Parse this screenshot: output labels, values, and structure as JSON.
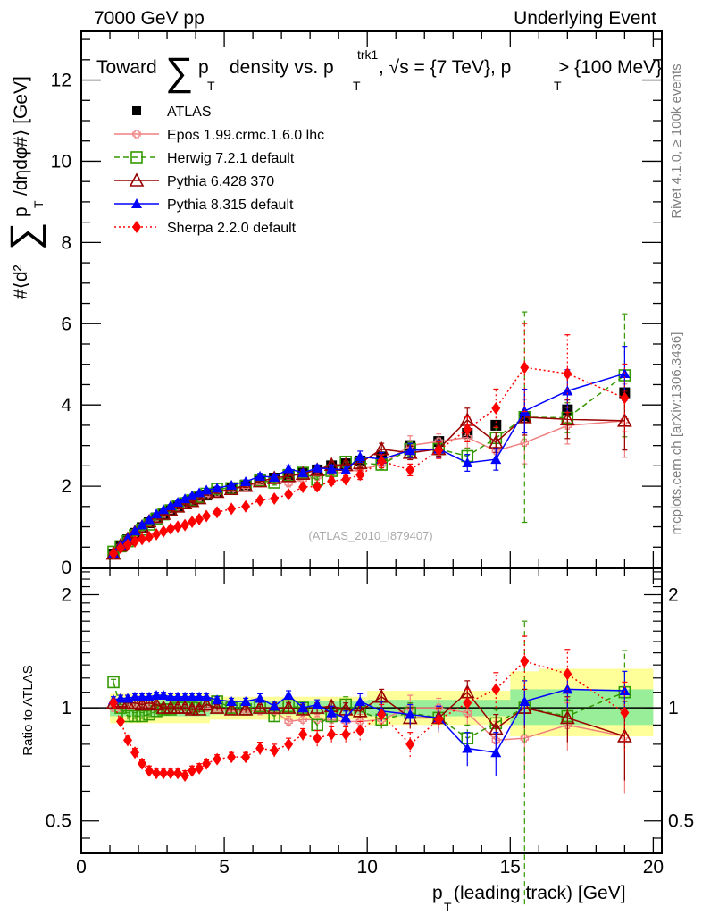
{
  "header": {
    "left": "7000 GeV pp",
    "right": "Underlying Event"
  },
  "side_labels": {
    "rivet": "Rivet 4.1.0, ≥ 100k events",
    "mcplots": "mcplots.cern.ch [arXiv:1306.3436]"
  },
  "watermark": "(ATLAS_2010_I879407)",
  "chart_data": [
    {
      "type": "scatter",
      "panel": "main",
      "title": "Toward ∑ p_T density vs. p_T^trk1, √s = {7 TeV}, p_T > {100 MeV}",
      "title_parts": {
        "a": "Toward",
        "b": "p",
        "c": "T",
        "d": "density vs. p",
        "e": "T",
        "f": "trk1",
        "g": ", √s = {7 TeV}, p",
        "h": "T",
        "i": " > {100 MeV}"
      },
      "ylabel": "#⟨d² ∑ p_T /dηdφ#⟩ [GeV]",
      "ylabel_parts": {
        "a": "#⟨d²",
        "b": "p",
        "c": "T",
        "d": "/dηdφ#⟩ [GeV]"
      },
      "xlabel": "",
      "xlim": [
        0,
        20.3
      ],
      "ylim": [
        0,
        13.2
      ],
      "yticks": [
        0,
        2,
        4,
        6,
        8,
        10,
        12
      ],
      "legend_position": "top-left",
      "x": [
        1.125,
        1.375,
        1.625,
        1.875,
        2.125,
        2.375,
        2.625,
        2.875,
        3.125,
        3.375,
        3.625,
        3.875,
        4.125,
        4.375,
        4.75,
        5.25,
        5.75,
        6.25,
        6.75,
        7.25,
        7.75,
        8.25,
        8.75,
        9.25,
        9.75,
        10.5,
        11.5,
        12.5,
        13.5,
        14.5,
        15.5,
        17,
        19
      ],
      "xerr": [
        0.125,
        0.125,
        0.125,
        0.125,
        0.125,
        0.125,
        0.125,
        0.125,
        0.125,
        0.125,
        0.125,
        0.125,
        0.125,
        0.125,
        0.25,
        0.25,
        0.25,
        0.25,
        0.25,
        0.25,
        0.25,
        0.25,
        0.25,
        0.25,
        0.25,
        0.5,
        0.5,
        0.5,
        0.5,
        0.5,
        0.5,
        1,
        1
      ],
      "series": [
        {
          "name": "ATLAS",
          "color": "#000000",
          "marker": "filled-square",
          "values": [
            0.33,
            0.52,
            0.68,
            0.84,
            0.98,
            1.1,
            1.22,
            1.32,
            1.42,
            1.5,
            1.58,
            1.65,
            1.72,
            1.78,
            1.86,
            1.95,
            2.03,
            2.12,
            2.2,
            2.25,
            2.33,
            2.4,
            2.5,
            2.55,
            2.62,
            2.72,
            3.0,
            3.1,
            3.3,
            3.5,
            3.7,
            3.88,
            4.3
          ]
        },
        {
          "name": "Epos 1.99.crmc.1.6.0 lhc",
          "color": "#f08080",
          "marker": "open-cross",
          "line": "solid",
          "ratio": [
            1.0,
            1.0,
            1.01,
            1.01,
            1.01,
            1.01,
            1.01,
            1.0,
            1.0,
            1.0,
            1.0,
            1.0,
            1.0,
            1.0,
            0.99,
            0.98,
            0.98,
            0.98,
            0.98,
            0.92,
            0.93,
            0.93,
            0.93,
            0.92,
            0.92,
            0.93,
            1.0,
            1.0,
            0.97,
            0.82,
            0.83,
            0.9,
            0.84
          ],
          "err": [
            0.02,
            0.02,
            0.02,
            0.02,
            0.02,
            0.02,
            0.02,
            0.02,
            0.02,
            0.02,
            0.02,
            0.02,
            0.02,
            0.02,
            0.02,
            0.02,
            0.02,
            0.02,
            0.03,
            0.03,
            0.03,
            0.03,
            0.04,
            0.04,
            0.04,
            0.05,
            0.08,
            0.06,
            0.08,
            0.1,
            0.17,
            0.13,
            0.25
          ]
        },
        {
          "name": "Herwig 7.2.1 default",
          "color": "#339900",
          "marker": "open-square",
          "line": "dashed",
          "ratio": [
            1.17,
            1.0,
            0.95,
            0.95,
            0.95,
            0.96,
            0.98,
            0.99,
            0.99,
            1.0,
            1.0,
            1.0,
            1.01,
            1.02,
            1.04,
            1.0,
            0.99,
            1.01,
            0.95,
            1.01,
            1.0,
            0.9,
            0.95,
            1.02,
            0.98,
            0.93,
            0.97,
            0.94,
            0.83,
            0.91,
            1.0,
            0.95,
            1.1
          ],
          "err": [
            0.02,
            0.02,
            0.02,
            0.02,
            0.02,
            0.02,
            0.02,
            0.02,
            0.02,
            0.02,
            0.02,
            0.02,
            0.02,
            0.02,
            0.02,
            0.02,
            0.02,
            0.03,
            0.03,
            0.03,
            0.03,
            0.03,
            0.04,
            0.05,
            0.04,
            0.05,
            0.06,
            0.06,
            0.07,
            0.08,
            0.7,
            0.1,
            0.32
          ]
        },
        {
          "name": "Pythia 6.428 370",
          "color": "#990000",
          "marker": "open-triangle",
          "line": "solid",
          "ratio": [
            1.03,
            1.04,
            1.03,
            1.03,
            1.02,
            1.03,
            1.02,
            1.0,
            1.0,
            1.0,
            1.0,
            0.99,
            0.99,
            1.02,
            1.0,
            0.99,
            0.99,
            1.0,
            1.0,
            1.0,
            0.99,
            1.0,
            1.01,
            0.99,
            0.98,
            1.07,
            0.94,
            0.94,
            1.1,
            0.88,
            1.0,
            0.94,
            0.84
          ],
          "err": [
            0.02,
            0.02,
            0.02,
            0.02,
            0.02,
            0.02,
            0.02,
            0.02,
            0.02,
            0.02,
            0.02,
            0.02,
            0.02,
            0.02,
            0.02,
            0.02,
            0.02,
            0.02,
            0.03,
            0.03,
            0.03,
            0.03,
            0.03,
            0.04,
            0.04,
            0.05,
            0.06,
            0.06,
            0.08,
            0.08,
            0.12,
            0.13,
            0.2
          ]
        },
        {
          "name": "Pythia 8.315 default",
          "color": "#0000ff",
          "marker": "filled-triangle",
          "line": "solid",
          "ratio": [
            1.05,
            1.06,
            1.06,
            1.07,
            1.07,
            1.07,
            1.08,
            1.08,
            1.07,
            1.07,
            1.07,
            1.07,
            1.07,
            1.07,
            1.05,
            1.04,
            1.04,
            1.06,
            1.01,
            1.08,
            1.0,
            1.02,
            0.97,
            0.94,
            1.04,
            0.98,
            0.96,
            0.94,
            0.78,
            0.76,
            1.04,
            1.12,
            1.11
          ],
          "err": [
            0.02,
            0.02,
            0.02,
            0.02,
            0.02,
            0.02,
            0.02,
            0.02,
            0.02,
            0.02,
            0.02,
            0.02,
            0.02,
            0.02,
            0.02,
            0.02,
            0.02,
            0.03,
            0.03,
            0.03,
            0.03,
            0.03,
            0.04,
            0.04,
            0.05,
            0.06,
            0.06,
            0.07,
            0.08,
            0.1,
            0.14,
            0.12,
            0.14
          ]
        },
        {
          "name": "Sherpa 2.2.0 default",
          "color": "#ff0000",
          "marker": "filled-diamond",
          "line": "dotted",
          "ratio": [
            1.03,
            0.92,
            0.82,
            0.76,
            0.71,
            0.68,
            0.67,
            0.67,
            0.67,
            0.67,
            0.66,
            0.68,
            0.69,
            0.71,
            0.73,
            0.74,
            0.74,
            0.78,
            0.77,
            0.8,
            0.85,
            0.83,
            0.85,
            0.85,
            0.87,
            0.96,
            0.8,
            0.93,
            1.03,
            1.12,
            1.33,
            1.23,
            0.97
          ],
          "err": [
            0.02,
            0.02,
            0.02,
            0.02,
            0.02,
            0.02,
            0.02,
            0.02,
            0.02,
            0.02,
            0.02,
            0.02,
            0.02,
            0.02,
            0.02,
            0.02,
            0.02,
            0.03,
            0.03,
            0.03,
            0.03,
            0.04,
            0.04,
            0.04,
            0.05,
            0.06,
            0.06,
            0.07,
            0.09,
            0.12,
            0.22,
            0.2,
            0.2
          ]
        }
      ]
    },
    {
      "type": "scatter",
      "panel": "ratio",
      "ylabel": "Ratio to ATLAS",
      "xlabel": "p_T (leading track) [GeV]",
      "xlabel_parts": {
        "a": "p",
        "b": "T",
        "c": " (leading track) [GeV]"
      },
      "yscale": "log",
      "ylim": [
        0.41,
        2.35
      ],
      "yticks": [
        0.5,
        1,
        2
      ],
      "ytick_labels": [
        "0.5",
        "1",
        "2"
      ],
      "xticks": [
        0,
        5,
        10,
        15,
        20
      ],
      "xtick_labels": [
        "0",
        "5",
        "10",
        "15",
        "20"
      ],
      "bands": {
        "edges": [
          1.0,
          4.5,
          10,
          15,
          16,
          20
        ],
        "yellow_lo": [
          0.91,
          0.93,
          0.9,
          0.84,
          0.84
        ],
        "yellow_hi": [
          1.09,
          1.07,
          1.11,
          1.25,
          1.27
        ],
        "green_lo": [
          0.95,
          0.96,
          0.95,
          0.9,
          0.9
        ],
        "green_hi": [
          1.05,
          1.04,
          1.05,
          1.12,
          1.12
        ],
        "yellow_color": "#ffff99",
        "green_color": "#99ee99"
      }
    }
  ]
}
